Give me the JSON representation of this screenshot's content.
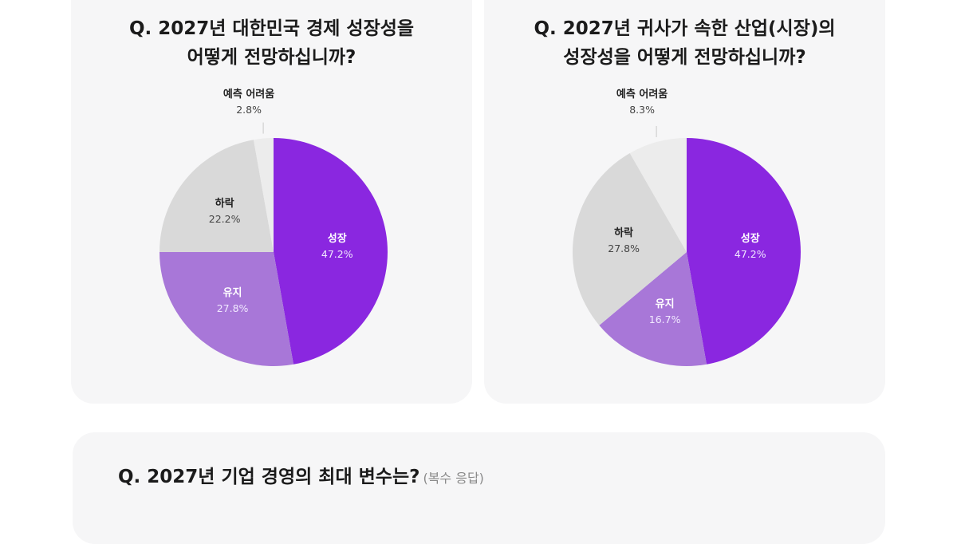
{
  "colors": {
    "growth": "#8a27e0",
    "maintain": "#a877d8",
    "decline": "#d9d9d9",
    "unpredictable": "#ececec",
    "card_bg": "#f6f6f7"
  },
  "chart_data": [
    {
      "type": "pie",
      "title_lines": [
        "Q. 2027년 대한민국 경제 성장성을",
        "어떻게 전망하십니까?"
      ],
      "slices": [
        {
          "label": "성장",
          "value": 47.2,
          "value_label": "47.2%",
          "color": "#8a27e0",
          "text_color": "light"
        },
        {
          "label": "유지",
          "value": 27.8,
          "value_label": "27.8%",
          "color": "#a877d8",
          "text_color": "light"
        },
        {
          "label": "하락",
          "value": 22.2,
          "value_label": "22.2%",
          "color": "#d9d9d9",
          "text_color": "dark"
        },
        {
          "label": "예측 어려움",
          "value": 2.8,
          "value_label": "2.8%",
          "color": "#ececec",
          "text_color": "dark",
          "label_outside": true
        }
      ]
    },
    {
      "type": "pie",
      "title_lines": [
        "Q. 2027년 귀사가 속한 산업(시장)의",
        "성장성을 어떻게 전망하십니까?"
      ],
      "slices": [
        {
          "label": "성장",
          "value": 47.2,
          "value_label": "47.2%",
          "color": "#8a27e0",
          "text_color": "light"
        },
        {
          "label": "유지",
          "value": 16.7,
          "value_label": "16.7%",
          "color": "#a877d8",
          "text_color": "light"
        },
        {
          "label": "하락",
          "value": 27.8,
          "value_label": "27.8%",
          "color": "#d9d9d9",
          "text_color": "dark"
        },
        {
          "label": "예측 어려움",
          "value": 8.3,
          "value_label": "8.3%",
          "color": "#ececec",
          "text_color": "dark",
          "label_outside": true
        }
      ]
    }
  ],
  "bottom": {
    "question": "Q. 2027년 기업 경영의 최대 변수는?",
    "note": "(복수 응답)"
  }
}
